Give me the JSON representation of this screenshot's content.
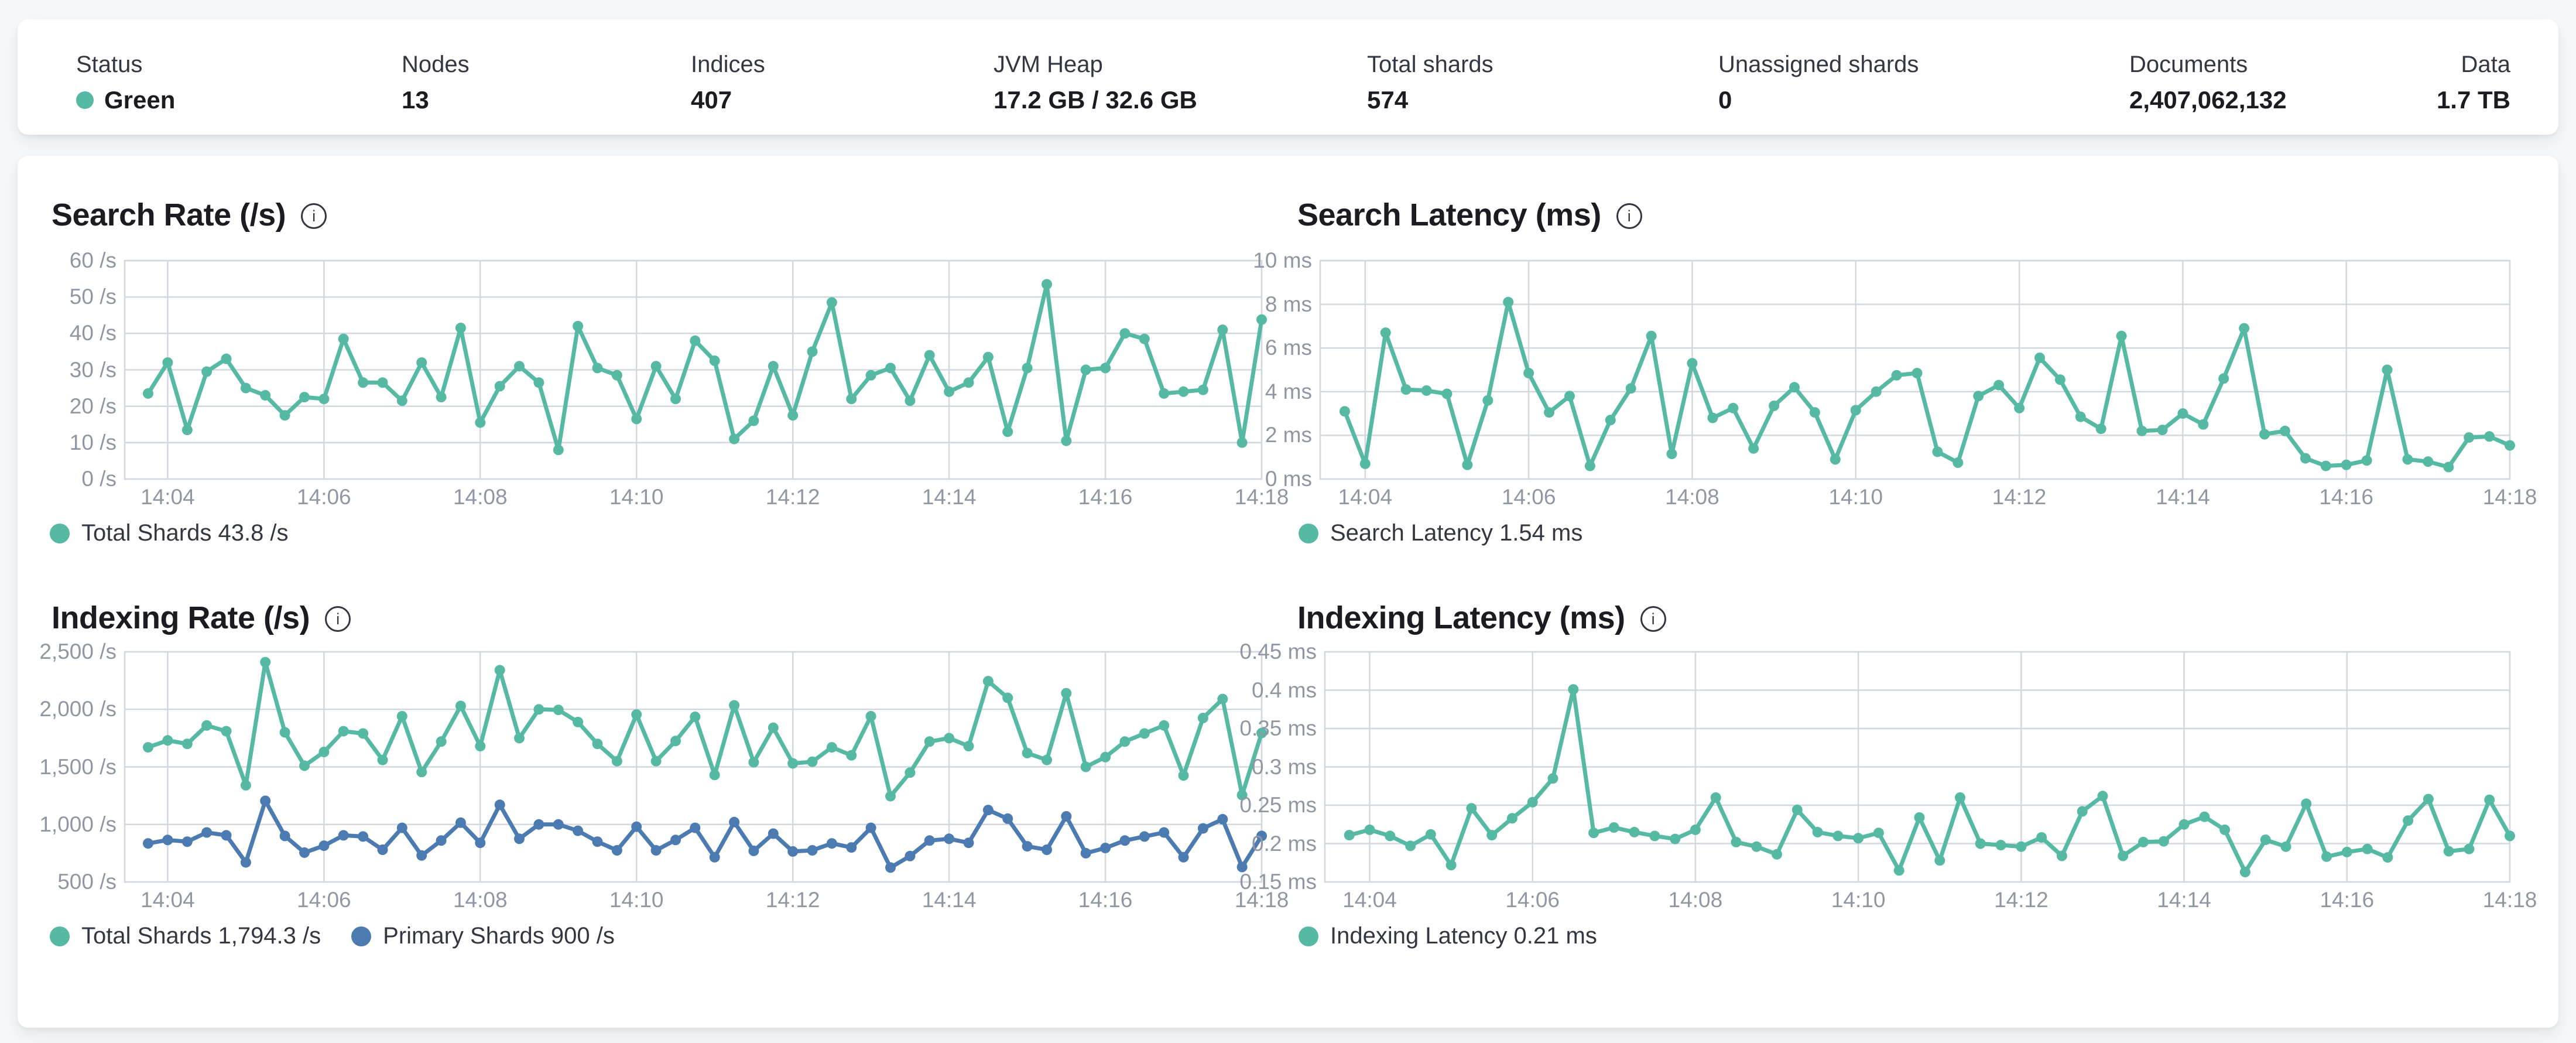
{
  "header": {
    "stats": [
      {
        "label": "Status",
        "value": "Green",
        "has_status_dot": true
      },
      {
        "label": "Nodes",
        "value": "13"
      },
      {
        "label": "Indices",
        "value": "407"
      },
      {
        "label": "JVM Heap",
        "value": "17.2 GB / 32.6 GB"
      },
      {
        "label": "Total shards",
        "value": "574"
      },
      {
        "label": "Unassigned shards",
        "value": "0"
      },
      {
        "label": "Documents",
        "value": "2,407,062,132"
      },
      {
        "label": "Data",
        "value": "1.7 TB"
      }
    ]
  },
  "colors": {
    "teal": "#56b9a4",
    "blue": "#4b7bb1",
    "grid": "#d3d8df",
    "axis_text": "#8f97a3",
    "title_text": "#1a1c21",
    "legend_text": "#343741",
    "card_bg": "#ffffff",
    "page_bg": "#f5f7f9",
    "status_green": "#56b9a4"
  },
  "chart_data": [
    {
      "type": "line",
      "title": "Search Rate (/s)",
      "ylabel": "",
      "x_unit": "time HH:MM (minutes after 14:00)",
      "x_start_min": 3.75,
      "x_step_min": 0.25,
      "x_domain": [
        3.45,
        18.0
      ],
      "ylim": [
        0,
        60
      ],
      "grid": true,
      "legend_position": "bottom-left",
      "x_ticks": [
        {
          "m": 4,
          "label": "14:04"
        },
        {
          "m": 6,
          "label": "14:06"
        },
        {
          "m": 8,
          "label": "14:08"
        },
        {
          "m": 10,
          "label": "14:10"
        },
        {
          "m": 12,
          "label": "14:12"
        },
        {
          "m": 14,
          "label": "14:14"
        },
        {
          "m": 16,
          "label": "14:16"
        },
        {
          "m": 18,
          "label": "14:18"
        }
      ],
      "y_ticks": [
        {
          "v": 0,
          "label": "0 /s"
        },
        {
          "v": 10,
          "label": "10 /s"
        },
        {
          "v": 20,
          "label": "20 /s"
        },
        {
          "v": 30,
          "label": "30 /s"
        },
        {
          "v": 40,
          "label": "40 /s"
        },
        {
          "v": 50,
          "label": "50 /s"
        },
        {
          "v": 60,
          "label": "60 /s"
        }
      ],
      "series": [
        {
          "name": "Total Shards",
          "legend": "Total Shards 43.8 /s",
          "current_value": "43.8 /s",
          "color": "#56b9a4",
          "values": [
            23.5,
            32,
            13.5,
            29.5,
            33,
            25,
            23,
            17.5,
            22.5,
            22,
            38.5,
            26.5,
            26.5,
            21.5,
            32,
            22.5,
            41.5,
            15.5,
            25.5,
            31,
            26.5,
            8,
            42,
            30.5,
            28.5,
            16.5,
            31,
            22,
            38,
            32.5,
            11,
            16,
            31,
            17.5,
            35,
            48.5,
            22,
            28.5,
            30.5,
            21.5,
            34,
            24,
            26.5,
            33.5,
            13,
            30.5,
            53.5,
            10.5,
            30,
            30.5,
            40,
            38.5,
            23.5,
            24,
            24.5,
            41,
            10,
            43.8
          ]
        }
      ]
    },
    {
      "type": "line",
      "title": "Search Latency (ms)",
      "ylabel": "",
      "x_unit": "time HH:MM (minutes after 14:00)",
      "x_start_min": 3.75,
      "x_step_min": 0.25,
      "x_domain": [
        3.45,
        18.0
      ],
      "ylim": [
        0,
        10
      ],
      "grid": true,
      "legend_position": "bottom-left",
      "x_ticks": [
        {
          "m": 4,
          "label": "14:04"
        },
        {
          "m": 6,
          "label": "14:06"
        },
        {
          "m": 8,
          "label": "14:08"
        },
        {
          "m": 10,
          "label": "14:10"
        },
        {
          "m": 12,
          "label": "14:12"
        },
        {
          "m": 14,
          "label": "14:14"
        },
        {
          "m": 16,
          "label": "14:16"
        },
        {
          "m": 18,
          "label": "14:18"
        }
      ],
      "y_ticks": [
        {
          "v": 0,
          "label": "0 ms"
        },
        {
          "v": 2,
          "label": "2 ms"
        },
        {
          "v": 4,
          "label": "4 ms"
        },
        {
          "v": 6,
          "label": "6 ms"
        },
        {
          "v": 8,
          "label": "8 ms"
        },
        {
          "v": 10,
          "label": "10 ms"
        }
      ],
      "series": [
        {
          "name": "Search Latency",
          "legend": "Search Latency 1.54 ms",
          "current_value": "1.54 ms",
          "color": "#56b9a4",
          "values": [
            3.1,
            0.7,
            6.7,
            4.1,
            4.05,
            3.9,
            0.65,
            3.6,
            8.1,
            4.85,
            3.05,
            3.8,
            0.6,
            2.7,
            4.15,
            6.55,
            1.15,
            5.3,
            2.8,
            3.25,
            1.4,
            3.35,
            4.2,
            3.05,
            0.9,
            3.15,
            4.0,
            4.75,
            4.85,
            1.25,
            0.75,
            3.8,
            4.3,
            3.25,
            5.55,
            4.55,
            2.85,
            2.3,
            6.55,
            2.2,
            2.25,
            3.0,
            2.5,
            4.6,
            6.9,
            2.05,
            2.2,
            0.95,
            0.6,
            0.65,
            0.85,
            5.0,
            0.9,
            0.8,
            0.55,
            1.9,
            1.95,
            1.54
          ]
        }
      ]
    },
    {
      "type": "line",
      "title": "Indexing Rate (/s)",
      "ylabel": "",
      "x_unit": "time HH:MM (minutes after 14:00)",
      "x_start_min": 3.75,
      "x_step_min": 0.25,
      "x_domain": [
        3.45,
        18.0
      ],
      "ylim": [
        500,
        2500
      ],
      "grid": true,
      "legend_position": "bottom-left",
      "x_ticks": [
        {
          "m": 4,
          "label": "14:04"
        },
        {
          "m": 6,
          "label": "14:06"
        },
        {
          "m": 8,
          "label": "14:08"
        },
        {
          "m": 10,
          "label": "14:10"
        },
        {
          "m": 12,
          "label": "14:12"
        },
        {
          "m": 14,
          "label": "14:14"
        },
        {
          "m": 16,
          "label": "14:16"
        },
        {
          "m": 18,
          "label": "14:18"
        }
      ],
      "y_ticks": [
        {
          "v": 500,
          "label": "500 /s"
        },
        {
          "v": 1000,
          "label": "1,000 /s"
        },
        {
          "v": 1500,
          "label": "1,500 /s"
        },
        {
          "v": 2000,
          "label": "2,000 /s"
        },
        {
          "v": 2500,
          "label": "2,500 /s"
        }
      ],
      "series": [
        {
          "name": "Total Shards",
          "legend": "Total Shards 1,794.3 /s",
          "current_value": "1,794.3 /s",
          "color": "#56b9a4",
          "values": [
            1670,
            1730,
            1700,
            1860,
            1810,
            1340,
            2410,
            1800,
            1510,
            1630,
            1810,
            1790,
            1560,
            1940,
            1455,
            1720,
            2030,
            1680,
            2340,
            1750,
            2000,
            1995,
            1890,
            1700,
            1550,
            1955,
            1550,
            1725,
            1935,
            1430,
            2035,
            1540,
            1840,
            1530,
            1545,
            1670,
            1600,
            1940,
            1245,
            1450,
            1720,
            1750,
            1680,
            2245,
            2100,
            1620,
            1560,
            2140,
            1500,
            1585,
            1720,
            1790,
            1860,
            1425,
            1925,
            2090,
            1255,
            1794.3
          ]
        },
        {
          "name": "Primary Shards",
          "legend": "Primary Shards 900 /s",
          "current_value": "900 /s",
          "color": "#4b7bb1",
          "values": [
            835,
            865,
            850,
            930,
            905,
            670,
            1205,
            900,
            755,
            815,
            905,
            895,
            780,
            970,
            730,
            860,
            1015,
            840,
            1170,
            875,
            1000,
            1000,
            945,
            850,
            775,
            980,
            775,
            865,
            970,
            715,
            1020,
            770,
            920,
            765,
            775,
            835,
            800,
            970,
            625,
            725,
            860,
            875,
            840,
            1125,
            1050,
            810,
            780,
            1070,
            750,
            795,
            860,
            895,
            930,
            715,
            965,
            1045,
            630,
            900
          ]
        }
      ]
    },
    {
      "type": "line",
      "title": "Indexing Latency (ms)",
      "ylabel": "",
      "x_unit": "time HH:MM (minutes after 14:00)",
      "x_start_min": 3.75,
      "x_step_min": 0.25,
      "x_domain": [
        3.45,
        18.0
      ],
      "ylim": [
        0.15,
        0.45
      ],
      "grid": true,
      "legend_position": "bottom-left",
      "x_ticks": [
        {
          "m": 4,
          "label": "14:04"
        },
        {
          "m": 6,
          "label": "14:06"
        },
        {
          "m": 8,
          "label": "14:08"
        },
        {
          "m": 10,
          "label": "14:10"
        },
        {
          "m": 12,
          "label": "14:12"
        },
        {
          "m": 14,
          "label": "14:14"
        },
        {
          "m": 16,
          "label": "14:16"
        },
        {
          "m": 18,
          "label": "14:18"
        }
      ],
      "y_ticks": [
        {
          "v": 0.15,
          "label": "0.15 ms"
        },
        {
          "v": 0.2,
          "label": "0.2 ms"
        },
        {
          "v": 0.25,
          "label": "0.25 ms"
        },
        {
          "v": 0.3,
          "label": "0.3 ms"
        },
        {
          "v": 0.35,
          "label": "0.35 ms"
        },
        {
          "v": 0.4,
          "label": "0.4 ms"
        },
        {
          "v": 0.45,
          "label": "0.45 ms"
        }
      ],
      "series": [
        {
          "name": "Indexing Latency",
          "legend": "Indexing Latency 0.21 ms",
          "current_value": "0.21 ms",
          "color": "#56b9a4",
          "values": [
            0.211,
            0.218,
            0.21,
            0.197,
            0.212,
            0.172,
            0.246,
            0.211,
            0.233,
            0.254,
            0.285,
            0.401,
            0.214,
            0.221,
            0.215,
            0.21,
            0.206,
            0.218,
            0.26,
            0.202,
            0.196,
            0.186,
            0.244,
            0.215,
            0.21,
            0.207,
            0.214,
            0.165,
            0.234,
            0.178,
            0.26,
            0.2,
            0.198,
            0.196,
            0.208,
            0.184,
            0.242,
            0.262,
            0.184,
            0.202,
            0.203,
            0.225,
            0.235,
            0.218,
            0.163,
            0.205,
            0.196,
            0.252,
            0.183,
            0.189,
            0.193,
            0.182,
            0.23,
            0.258,
            0.19,
            0.193,
            0.257,
            0.21
          ]
        }
      ]
    }
  ]
}
